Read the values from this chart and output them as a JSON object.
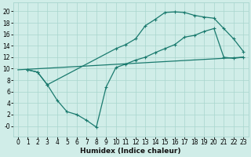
{
  "background_color": "#d0ede8",
  "grid_color": "#a8d5ce",
  "line_color": "#1a7a6e",
  "line_width": 0.9,
  "marker": "+",
  "marker_size": 3.5,
  "marker_lw": 0.8,
  "xlabel": "Humidex (Indice chaleur)",
  "xlabel_fontsize": 6.5,
  "tick_fontsize": 5.5,
  "xlim": [
    -0.5,
    23.5
  ],
  "ylim": [
    -1.8,
    21.5
  ],
  "xticks": [
    0,
    1,
    2,
    3,
    4,
    5,
    6,
    7,
    8,
    9,
    10,
    11,
    12,
    13,
    14,
    15,
    16,
    17,
    18,
    19,
    20,
    21,
    22,
    23
  ],
  "yticks": [
    0,
    2,
    4,
    6,
    8,
    10,
    12,
    14,
    16,
    18,
    20
  ],
  "line1_x": [
    1,
    2,
    3,
    10,
    11,
    12,
    13,
    14,
    15,
    16,
    17,
    18,
    19,
    20,
    21,
    22,
    23
  ],
  "line1_y": [
    9.8,
    9.4,
    7.2,
    13.5,
    14.2,
    15.2,
    17.5,
    18.6,
    19.8,
    19.9,
    19.8,
    19.3,
    19.0,
    18.8,
    17.0,
    15.2,
    13.0
  ],
  "line2_x": [
    0,
    23
  ],
  "line2_y": [
    9.8,
    12.0
  ],
  "line3_x": [
    1,
    2,
    3,
    4,
    5,
    6,
    7,
    8,
    9,
    10,
    11,
    12,
    13,
    14,
    15,
    16,
    17,
    18,
    19,
    20,
    21,
    22,
    23
  ],
  "line3_y": [
    9.8,
    9.4,
    7.2,
    4.5,
    2.5,
    2.0,
    1.0,
    -0.2,
    6.8,
    10.2,
    10.8,
    11.5,
    12.0,
    12.8,
    13.5,
    14.2,
    15.5,
    15.8,
    16.5,
    17.0,
    12.0,
    11.8,
    12.0
  ]
}
